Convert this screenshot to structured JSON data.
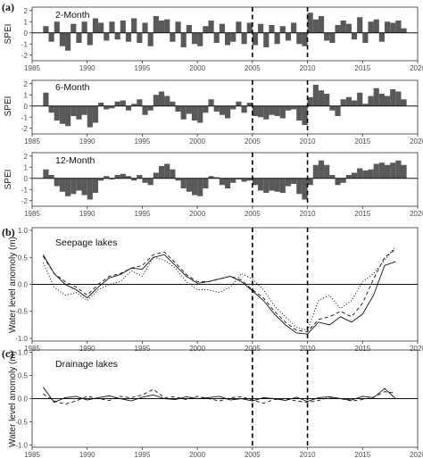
{
  "figure": {
    "panel_labels": [
      "(a)",
      "(b)",
      "(c)"
    ],
    "ref_years": [
      2005,
      2010
    ],
    "x_ticks": [
      1985,
      1990,
      1995,
      2000,
      2005,
      2010,
      2015,
      2020
    ],
    "xlim": [
      1985,
      2020
    ]
  },
  "chart_data": [
    {
      "type": "bar",
      "title": "2-Month",
      "ylabel": "SPEI",
      "ylim": [
        -2.5,
        2.3
      ],
      "y_ticks": [
        -2,
        -1,
        0,
        1,
        2
      ],
      "bar_color": "#595959",
      "segments": [
        [
          1986.0,
          0.6
        ],
        [
          1986.5,
          -0.8
        ],
        [
          1987.0,
          1.0
        ],
        [
          1987.5,
          -1.2
        ],
        [
          1988.0,
          -1.6
        ],
        [
          1988.5,
          0.8
        ],
        [
          1989.0,
          -0.9
        ],
        [
          1989.5,
          1.0
        ],
        [
          1990.0,
          -1.1
        ],
        [
          1990.5,
          1.3
        ],
        [
          1991.0,
          0.9
        ],
        [
          1991.5,
          -0.7
        ],
        [
          1992.0,
          1.0
        ],
        [
          1992.5,
          -0.6
        ],
        [
          1993.0,
          1.1
        ],
        [
          1993.5,
          -0.8
        ],
        [
          1994.0,
          1.3
        ],
        [
          1994.5,
          -0.9
        ],
        [
          1995.0,
          0.9
        ],
        [
          1995.5,
          -1.2
        ],
        [
          1996.0,
          1.5
        ],
        [
          1996.5,
          1.1
        ],
        [
          1997.0,
          1.2
        ],
        [
          1997.5,
          -0.8
        ],
        [
          1998.0,
          1.0
        ],
        [
          1998.5,
          -1.3
        ],
        [
          1999.0,
          0.7
        ],
        [
          1999.5,
          -1.0
        ],
        [
          2000.0,
          -1.2
        ],
        [
          2000.5,
          0.6
        ],
        [
          2001.0,
          1.1
        ],
        [
          2001.5,
          -0.9
        ],
        [
          2002.0,
          0.8
        ],
        [
          2002.5,
          -1.1
        ],
        [
          2003.0,
          -0.8
        ],
        [
          2003.5,
          1.0
        ],
        [
          2004.0,
          -1.0
        ],
        [
          2004.5,
          0.9
        ],
        [
          2005.0,
          -1.1
        ],
        [
          2005.5,
          0.8
        ],
        [
          2006.0,
          -1.3
        ],
        [
          2006.5,
          0.7
        ],
        [
          2007.0,
          -1.0
        ],
        [
          2007.5,
          0.6
        ],
        [
          2008.0,
          -0.7
        ],
        [
          2008.5,
          0.9
        ],
        [
          2009.0,
          -1.0
        ],
        [
          2009.5,
          -1.2
        ],
        [
          2010.0,
          1.8
        ],
        [
          2010.5,
          1.2
        ],
        [
          2011.0,
          1.5
        ],
        [
          2011.5,
          -0.7
        ],
        [
          2012.0,
          -0.9
        ],
        [
          2012.5,
          0.7
        ],
        [
          2013.0,
          1.1
        ],
        [
          2013.5,
          0.8
        ],
        [
          2014.0,
          -0.6
        ],
        [
          2014.5,
          1.4
        ],
        [
          2015.0,
          -0.9
        ],
        [
          2015.5,
          1.0
        ],
        [
          2016.0,
          1.2
        ],
        [
          2016.5,
          -0.8
        ],
        [
          2017.0,
          1.0
        ],
        [
          2017.5,
          0.9
        ],
        [
          2018.0,
          1.1
        ],
        [
          2018.5,
          0.4
        ]
      ]
    },
    {
      "type": "bar",
      "title": "6-Month",
      "ylabel": "SPEI",
      "ylim": [
        -2.5,
        2.3
      ],
      "y_ticks": [
        -2,
        -1,
        0,
        1,
        2
      ],
      "bar_color": "#595959",
      "segments": [
        [
          1986.0,
          1.2
        ],
        [
          1986.5,
          -0.6
        ],
        [
          1987.0,
          -1.3
        ],
        [
          1987.5,
          -1.6
        ],
        [
          1988.0,
          -1.8
        ],
        [
          1988.5,
          -0.9
        ],
        [
          1989.0,
          -1.2
        ],
        [
          1989.5,
          -0.8
        ],
        [
          1990.0,
          -1.9
        ],
        [
          1990.5,
          -1.5
        ],
        [
          1991.0,
          0.3
        ],
        [
          1991.5,
          -0.3
        ],
        [
          1992.0,
          -0.2
        ],
        [
          1992.5,
          0.4
        ],
        [
          1993.0,
          0.5
        ],
        [
          1993.5,
          -0.4
        ],
        [
          1994.0,
          0.2
        ],
        [
          1994.5,
          0.6
        ],
        [
          1995.0,
          -0.8
        ],
        [
          1995.5,
          -0.4
        ],
        [
          1996.0,
          1.0
        ],
        [
          1996.5,
          1.3
        ],
        [
          1997.0,
          0.9
        ],
        [
          1997.5,
          0.4
        ],
        [
          1998.0,
          -0.5
        ],
        [
          1998.5,
          -1.2
        ],
        [
          1999.0,
          -0.7
        ],
        [
          1999.5,
          -1.3
        ],
        [
          2000.0,
          -1.5
        ],
        [
          2000.5,
          -0.6
        ],
        [
          2001.0,
          0.6
        ],
        [
          2001.5,
          -0.5
        ],
        [
          2002.0,
          -0.8
        ],
        [
          2002.5,
          -1.1
        ],
        [
          2003.0,
          -0.3
        ],
        [
          2003.5,
          0.4
        ],
        [
          2004.0,
          -0.6
        ],
        [
          2004.5,
          0.3
        ],
        [
          2005.0,
          -0.9
        ],
        [
          2005.5,
          -1.0
        ],
        [
          2006.0,
          -1.2
        ],
        [
          2006.5,
          -0.8
        ],
        [
          2007.0,
          -0.9
        ],
        [
          2007.5,
          -1.1
        ],
        [
          2008.0,
          -0.4
        ],
        [
          2008.5,
          -0.3
        ],
        [
          2009.0,
          -1.3
        ],
        [
          2009.5,
          -1.7
        ],
        [
          2010.0,
          0.8
        ],
        [
          2010.5,
          1.9
        ],
        [
          2011.0,
          1.4
        ],
        [
          2011.5,
          1.1
        ],
        [
          2012.0,
          -0.4
        ],
        [
          2012.5,
          -0.9
        ],
        [
          2013.0,
          0.6
        ],
        [
          2013.5,
          0.8
        ],
        [
          2014.0,
          0.5
        ],
        [
          2014.5,
          1.2
        ],
        [
          2015.0,
          0.2
        ],
        [
          2015.5,
          0.9
        ],
        [
          2016.0,
          1.6
        ],
        [
          2016.5,
          1.1
        ],
        [
          2017.0,
          0.9
        ],
        [
          2017.5,
          1.5
        ],
        [
          2018.0,
          1.3
        ],
        [
          2018.5,
          0.6
        ]
      ]
    },
    {
      "type": "bar",
      "title": "12-Month",
      "ylabel": "SPEI",
      "ylim": [
        -2.5,
        2.3
      ],
      "y_ticks": [
        -2,
        -1,
        0,
        1,
        2
      ],
      "bar_color": "#595959",
      "segments": [
        [
          1986.0,
          0.8
        ],
        [
          1986.5,
          0.3
        ],
        [
          1987.0,
          -0.7
        ],
        [
          1987.5,
          -1.2
        ],
        [
          1988.0,
          -1.6
        ],
        [
          1988.5,
          -1.4
        ],
        [
          1989.0,
          -1.1
        ],
        [
          1989.5,
          -1.5
        ],
        [
          1990.0,
          -1.9
        ],
        [
          1990.5,
          -1.3
        ],
        [
          1991.0,
          -0.2
        ],
        [
          1991.5,
          0.2
        ],
        [
          1992.0,
          -0.1
        ],
        [
          1992.5,
          0.3
        ],
        [
          1993.0,
          0.4
        ],
        [
          1993.5,
          0.2
        ],
        [
          1994.0,
          -0.2
        ],
        [
          1994.5,
          0.3
        ],
        [
          1995.0,
          -0.4
        ],
        [
          1995.5,
          -0.6
        ],
        [
          1996.0,
          0.5
        ],
        [
          1996.5,
          1.1
        ],
        [
          1997.0,
          1.3
        ],
        [
          1997.5,
          0.8
        ],
        [
          1998.0,
          -0.2
        ],
        [
          1998.5,
          -0.9
        ],
        [
          1999.0,
          -1.2
        ],
        [
          1999.5,
          -1.5
        ],
        [
          2000.0,
          -1.6
        ],
        [
          2000.5,
          -0.9
        ],
        [
          2001.0,
          0.2
        ],
        [
          2001.5,
          0.1
        ],
        [
          2002.0,
          -0.6
        ],
        [
          2002.5,
          -0.9
        ],
        [
          2003.0,
          -0.4
        ],
        [
          2003.5,
          -0.1
        ],
        [
          2004.0,
          -0.3
        ],
        [
          2004.5,
          -0.2
        ],
        [
          2005.0,
          -0.6
        ],
        [
          2005.5,
          -1.1
        ],
        [
          2006.0,
          -1.3
        ],
        [
          2006.5,
          -1.1
        ],
        [
          2007.0,
          -1.2
        ],
        [
          2007.5,
          -1.3
        ],
        [
          2008.0,
          -0.7
        ],
        [
          2008.5,
          -0.5
        ],
        [
          2009.0,
          -1.4
        ],
        [
          2009.5,
          -1.9
        ],
        [
          2010.0,
          -0.6
        ],
        [
          2010.5,
          1.2
        ],
        [
          2011.0,
          1.6
        ],
        [
          2011.5,
          1.2
        ],
        [
          2012.0,
          0.3
        ],
        [
          2012.5,
          -0.6
        ],
        [
          2013.0,
          -0.4
        ],
        [
          2013.5,
          0.3
        ],
        [
          2014.0,
          0.5
        ],
        [
          2014.5,
          0.9
        ],
        [
          2015.0,
          0.7
        ],
        [
          2015.5,
          0.8
        ],
        [
          2016.0,
          1.3
        ],
        [
          2016.5,
          1.4
        ],
        [
          2017.0,
          1.2
        ],
        [
          2017.5,
          1.4
        ],
        [
          2018.0,
          1.6
        ],
        [
          2018.5,
          1.2
        ]
      ]
    },
    {
      "type": "line",
      "title": "Seepage lakes",
      "ylabel": "Water level anomoly (m)",
      "ylim": [
        -1.05,
        1.05
      ],
      "y_ticks": [
        -1.0,
        -0.5,
        0.0,
        0.5,
        1.0
      ],
      "series": [
        {
          "style": "solid",
          "x": [
            1986,
            1987,
            1988,
            1989,
            1990,
            1991,
            1992,
            1993,
            1994,
            1995,
            1996,
            1997,
            1998,
            1999,
            2000,
            2001,
            2002,
            2003,
            2004,
            2005,
            2006,
            2007,
            2008,
            2009,
            2010,
            2011,
            2012,
            2013,
            2014,
            2015,
            2016,
            2017,
            2018
          ],
          "y": [
            0.55,
            0.2,
            0.0,
            -0.1,
            -0.25,
            -0.05,
            0.12,
            0.18,
            0.3,
            0.28,
            0.5,
            0.55,
            0.35,
            0.15,
            0.02,
            0.05,
            0.1,
            0.15,
            0.05,
            -0.12,
            -0.3,
            -0.55,
            -0.75,
            -0.9,
            -0.92,
            -0.7,
            -0.75,
            -0.6,
            -0.7,
            -0.55,
            -0.2,
            0.35,
            0.42
          ]
        },
        {
          "style": "dashed",
          "x": [
            1986,
            1987,
            1988,
            1989,
            1990,
            1991,
            1992,
            1993,
            1994,
            1995,
            1996,
            1997,
            1998,
            1999,
            2000,
            2001,
            2002,
            2003,
            2004,
            2005,
            2006,
            2007,
            2008,
            2009,
            2010,
            2011,
            2012,
            2013,
            2014,
            2015,
            2016,
            2017,
            2018
          ],
          "y": [
            0.52,
            0.2,
            0.05,
            -0.05,
            -0.2,
            0.0,
            0.15,
            0.2,
            0.3,
            0.35,
            0.55,
            0.6,
            0.4,
            0.18,
            0.05,
            0.05,
            0.1,
            0.15,
            0.08,
            -0.1,
            -0.25,
            -0.5,
            -0.7,
            -0.85,
            -0.88,
            -0.65,
            -0.6,
            -0.5,
            -0.6,
            -0.35,
            0.1,
            0.5,
            0.65
          ]
        },
        {
          "style": "dotted",
          "x": [
            1986,
            1987,
            1988,
            1989,
            1990,
            1991,
            1992,
            1993,
            1994,
            1995,
            1996,
            1997,
            1998,
            1999,
            2000,
            2001,
            2002,
            2003,
            2004,
            2005,
            2006,
            2007,
            2008,
            2009,
            2010,
            2011,
            2012,
            2013,
            2014,
            2015,
            2016,
            2017,
            2018
          ],
          "y": [
            0.4,
            -0.05,
            -0.2,
            -0.15,
            -0.3,
            -0.1,
            0.0,
            0.05,
            0.25,
            0.15,
            0.5,
            0.45,
            0.3,
            0.05,
            -0.1,
            -0.1,
            -0.15,
            -0.05,
            0.2,
            0.1,
            -0.1,
            -0.4,
            -0.6,
            -0.8,
            -0.85,
            -0.3,
            -0.2,
            -0.45,
            -0.3,
            0.05,
            0.2,
            0.45,
            0.7
          ]
        }
      ]
    },
    {
      "type": "line",
      "title": "Drainage lakes",
      "ylabel": "Water level anomoly (m)",
      "ylim": [
        -1.05,
        1.05
      ],
      "y_ticks": [
        -1.0,
        -0.5,
        0.0,
        0.5,
        1.0
      ],
      "series": [
        {
          "style": "solid",
          "x": [
            1986,
            1987,
            1988,
            1989,
            1990,
            1991,
            1992,
            1993,
            1994,
            1995,
            1996,
            1997,
            1998,
            1999,
            2000,
            2001,
            2002,
            2003,
            2004,
            2005,
            2006,
            2007,
            2008,
            2009,
            2010,
            2011,
            2012,
            2013,
            2014,
            2015,
            2016,
            2017,
            2018
          ],
          "y": [
            0.25,
            -0.08,
            0.02,
            0.05,
            -0.03,
            0.02,
            0.06,
            0.0,
            -0.05,
            0.03,
            0.08,
            0.0,
            -0.02,
            0.04,
            0.0,
            0.02,
            0.05,
            -0.03,
            0.0,
            -0.05,
            0.02,
            0.0,
            -0.04,
            0.03,
            -0.06,
            0.02,
            0.04,
            0.0,
            -0.03,
            0.05,
            0.02,
            0.22,
            0.0
          ]
        },
        {
          "style": "dashed",
          "x": [
            1986,
            1987,
            1988,
            1989,
            1990,
            1991,
            1992,
            1993,
            1994,
            1995,
            1996,
            1997,
            1998,
            1999,
            2000,
            2001,
            2002,
            2003,
            2004,
            2005,
            2006,
            2007,
            2008,
            2009,
            2010,
            2011,
            2012,
            2013,
            2014,
            2015,
            2016,
            2017,
            2018
          ],
          "y": [
            0.1,
            -0.05,
            -0.12,
            -0.05,
            0.05,
            0.0,
            -0.04,
            0.05,
            0.02,
            0.08,
            0.2,
            0.02,
            0.04,
            -0.02,
            0.05,
            0.0,
            -0.05,
            0.02,
            0.04,
            -0.03,
            -0.1,
            -0.02,
            0.0,
            -0.05,
            -0.08,
            -0.04,
            0.03,
            0.0,
            -0.05,
            -0.02,
            0.03,
            0.15,
            0.12
          ]
        }
      ]
    }
  ]
}
